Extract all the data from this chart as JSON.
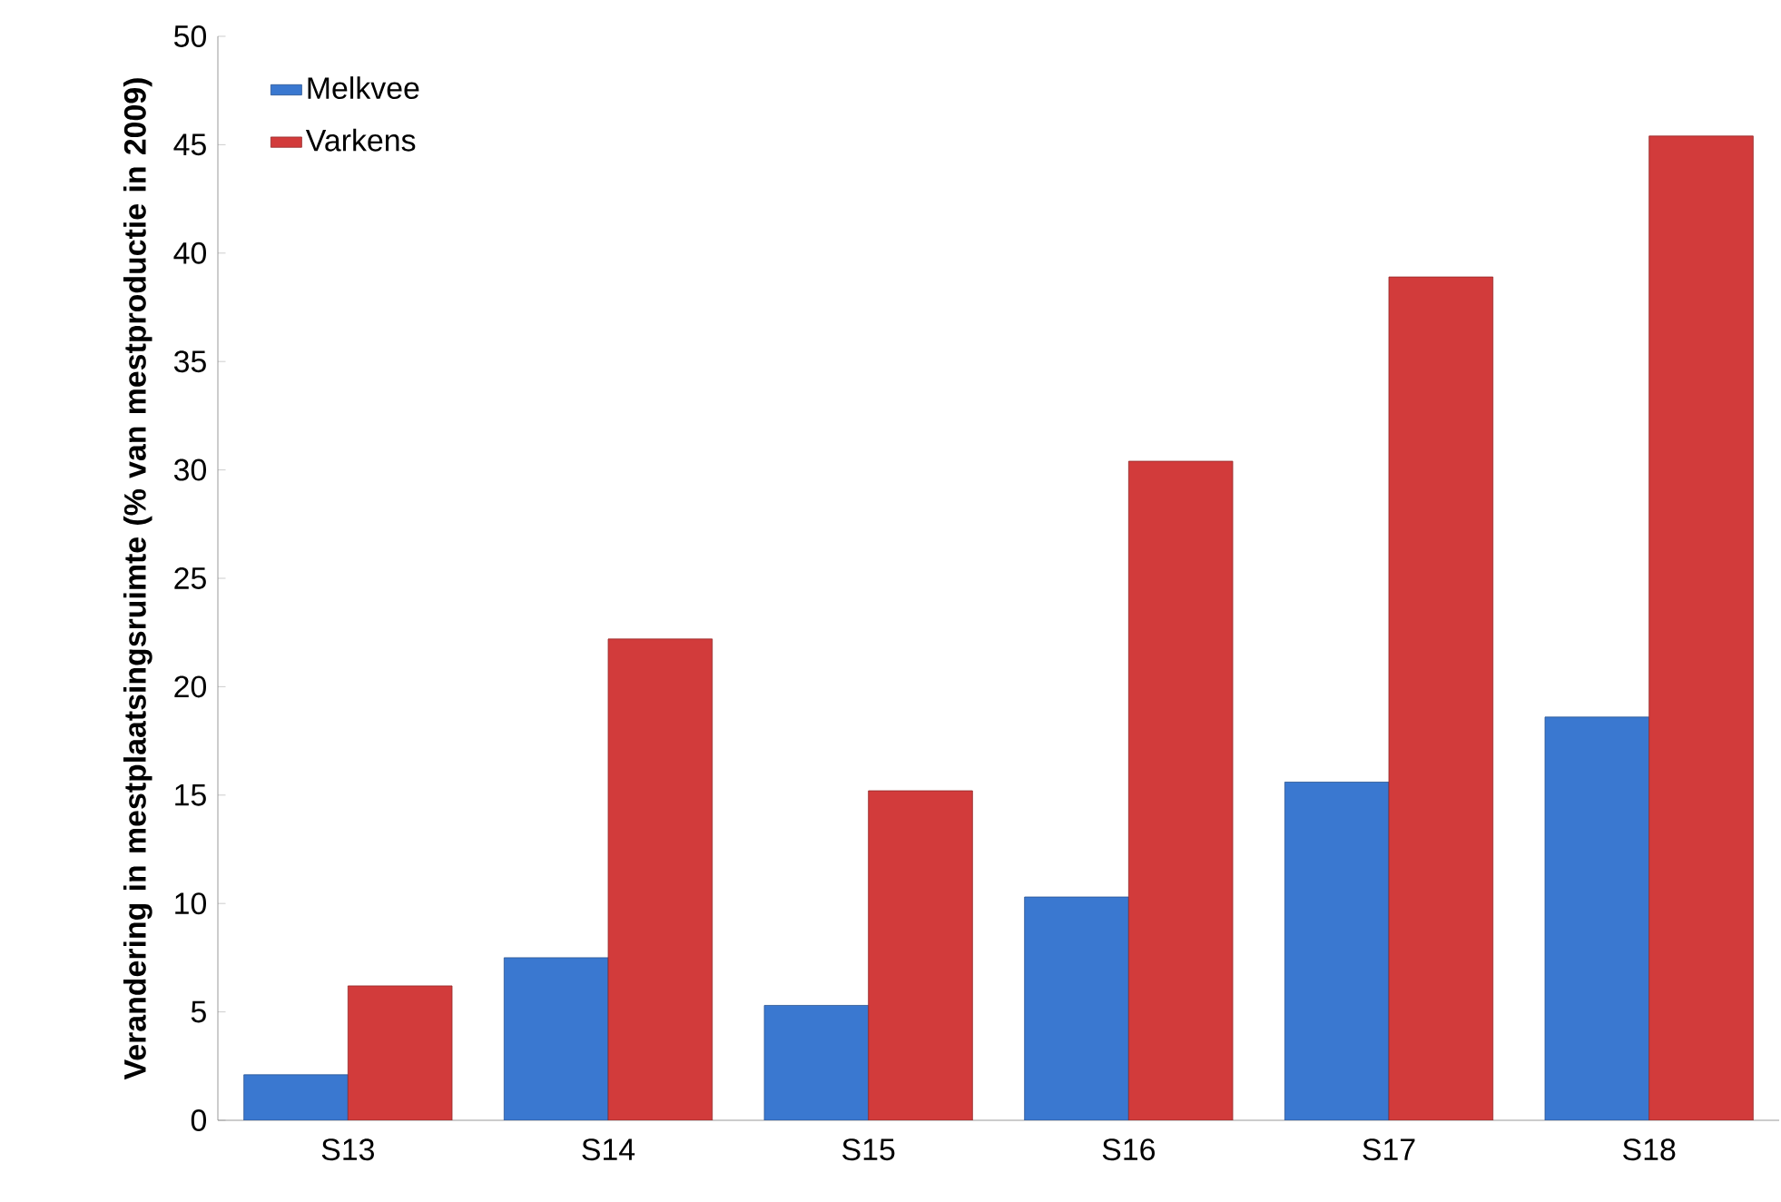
{
  "chart_data": {
    "type": "bar",
    "ylabel": "Verandering in mestplaatsingsruimte (% van mestproductie in 2009)",
    "categories": [
      "S13",
      "S14",
      "S15",
      "S16",
      "S17",
      "S18"
    ],
    "series": [
      {
        "name": "Melkvee",
        "color": "#3a78d0",
        "values": [
          2.1,
          7.5,
          5.3,
          10.3,
          15.6,
          18.6
        ]
      },
      {
        "name": "Varkens",
        "color": "#d23b3b",
        "values": [
          6.2,
          22.2,
          15.2,
          30.4,
          38.9,
          45.4
        ]
      }
    ],
    "ylim": [
      0,
      50
    ],
    "yticks": [
      0,
      5,
      10,
      15,
      20,
      25,
      30,
      35,
      40,
      45,
      50
    ],
    "legend": "top left"
  }
}
